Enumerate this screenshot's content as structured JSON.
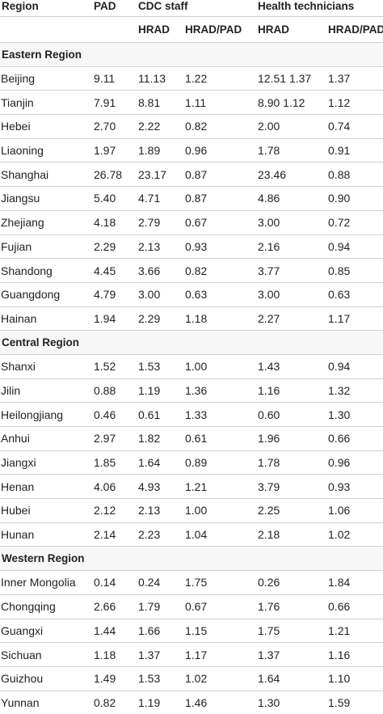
{
  "header": {
    "region": "Region",
    "pad": "PAD",
    "cdc_staff": "CDC staff",
    "health_technicians": "Health technicians",
    "hrad": "HRAD",
    "hrad_pad": "HRAD/PAD",
    "hrad2": "HRAD",
    "hrad_pad2": "HRAD/PAD"
  },
  "groups": [
    {
      "name": "Eastern Region",
      "rows": [
        [
          "Beijing",
          "9.11",
          "11.13",
          "1.22",
          "12.51 1.37",
          "1.37"
        ],
        [
          "Tianjin",
          "7.91",
          "8.81",
          "1.11",
          "8.90 1.12",
          "1.12"
        ],
        [
          "Hebei",
          "2.70",
          "2.22",
          "0.82",
          "2.00",
          "0.74"
        ],
        [
          "Liaoning",
          "1.97",
          "1.89",
          "0.96",
          "1.78",
          "0.91"
        ],
        [
          "Shanghai",
          "26.78",
          "23.17",
          "0.87",
          "23.46",
          "0.88"
        ],
        [
          "Jiangsu",
          "5.40",
          "4.71",
          "0.87",
          "4.86",
          "0.90"
        ],
        [
          "Zhejiang",
          "4.18",
          "2.79",
          "0.67",
          "3.00",
          "0.72"
        ],
        [
          "Fujian",
          "2.29",
          "2.13",
          "0.93",
          "2.16",
          "0.94"
        ],
        [
          "Shandong",
          "4.45",
          "3.66",
          "0.82",
          "3.77",
          "0.85"
        ],
        [
          "Guangdong",
          "4.79",
          "3.00",
          "0.63",
          "3.00",
          "0.63"
        ],
        [
          "Hainan",
          "1.94",
          "2.29",
          "1.18",
          "2.27",
          "1.17"
        ]
      ]
    },
    {
      "name": "Central Region",
      "rows": [
        [
          "Shanxi",
          "1.52",
          "1.53",
          "1.00",
          "1.43",
          "0.94"
        ],
        [
          "Jilin",
          "0.88",
          "1.19",
          "1.36",
          "1.16",
          "1.32"
        ],
        [
          "Heilongjiang",
          "0.46",
          "0.61",
          "1.33",
          "0.60",
          "1.30"
        ],
        [
          "Anhui",
          "2.97",
          "1.82",
          "0.61",
          "1.96",
          "0.66"
        ],
        [
          "Jiangxi",
          "1.85",
          "1.64",
          "0.89",
          "1.78",
          "0.96"
        ],
        [
          "Henan",
          "4.06",
          "4.93",
          "1.21",
          "3.79",
          "0.93"
        ],
        [
          "Hubei",
          "2.12",
          "2.13",
          "1.00",
          "2.25",
          "1.06"
        ],
        [
          "Hunan",
          "2.14",
          "2.23",
          "1.04",
          "2.18",
          "1.02"
        ]
      ]
    },
    {
      "name": "Western Region",
      "rows": [
        [
          "Inner Mongolia",
          "0.14",
          "0.24",
          "1.75",
          "0.26",
          "1.84"
        ],
        [
          "Chongqing",
          "2.66",
          "1.79",
          "0.67",
          "1.76",
          "0.66"
        ],
        [
          "Guangxi",
          "1.44",
          "1.66",
          "1.15",
          "1.75",
          "1.21"
        ],
        [
          "Sichuan",
          "1.18",
          "1.37",
          "1.17",
          "1.37",
          "1.16"
        ],
        [
          "Guizhou",
          "1.49",
          "1.53",
          "1.02",
          "1.64",
          "1.10"
        ],
        [
          "Yunnan",
          "0.82",
          "1.19",
          "1.46",
          "1.30",
          "1.59"
        ]
      ]
    }
  ]
}
